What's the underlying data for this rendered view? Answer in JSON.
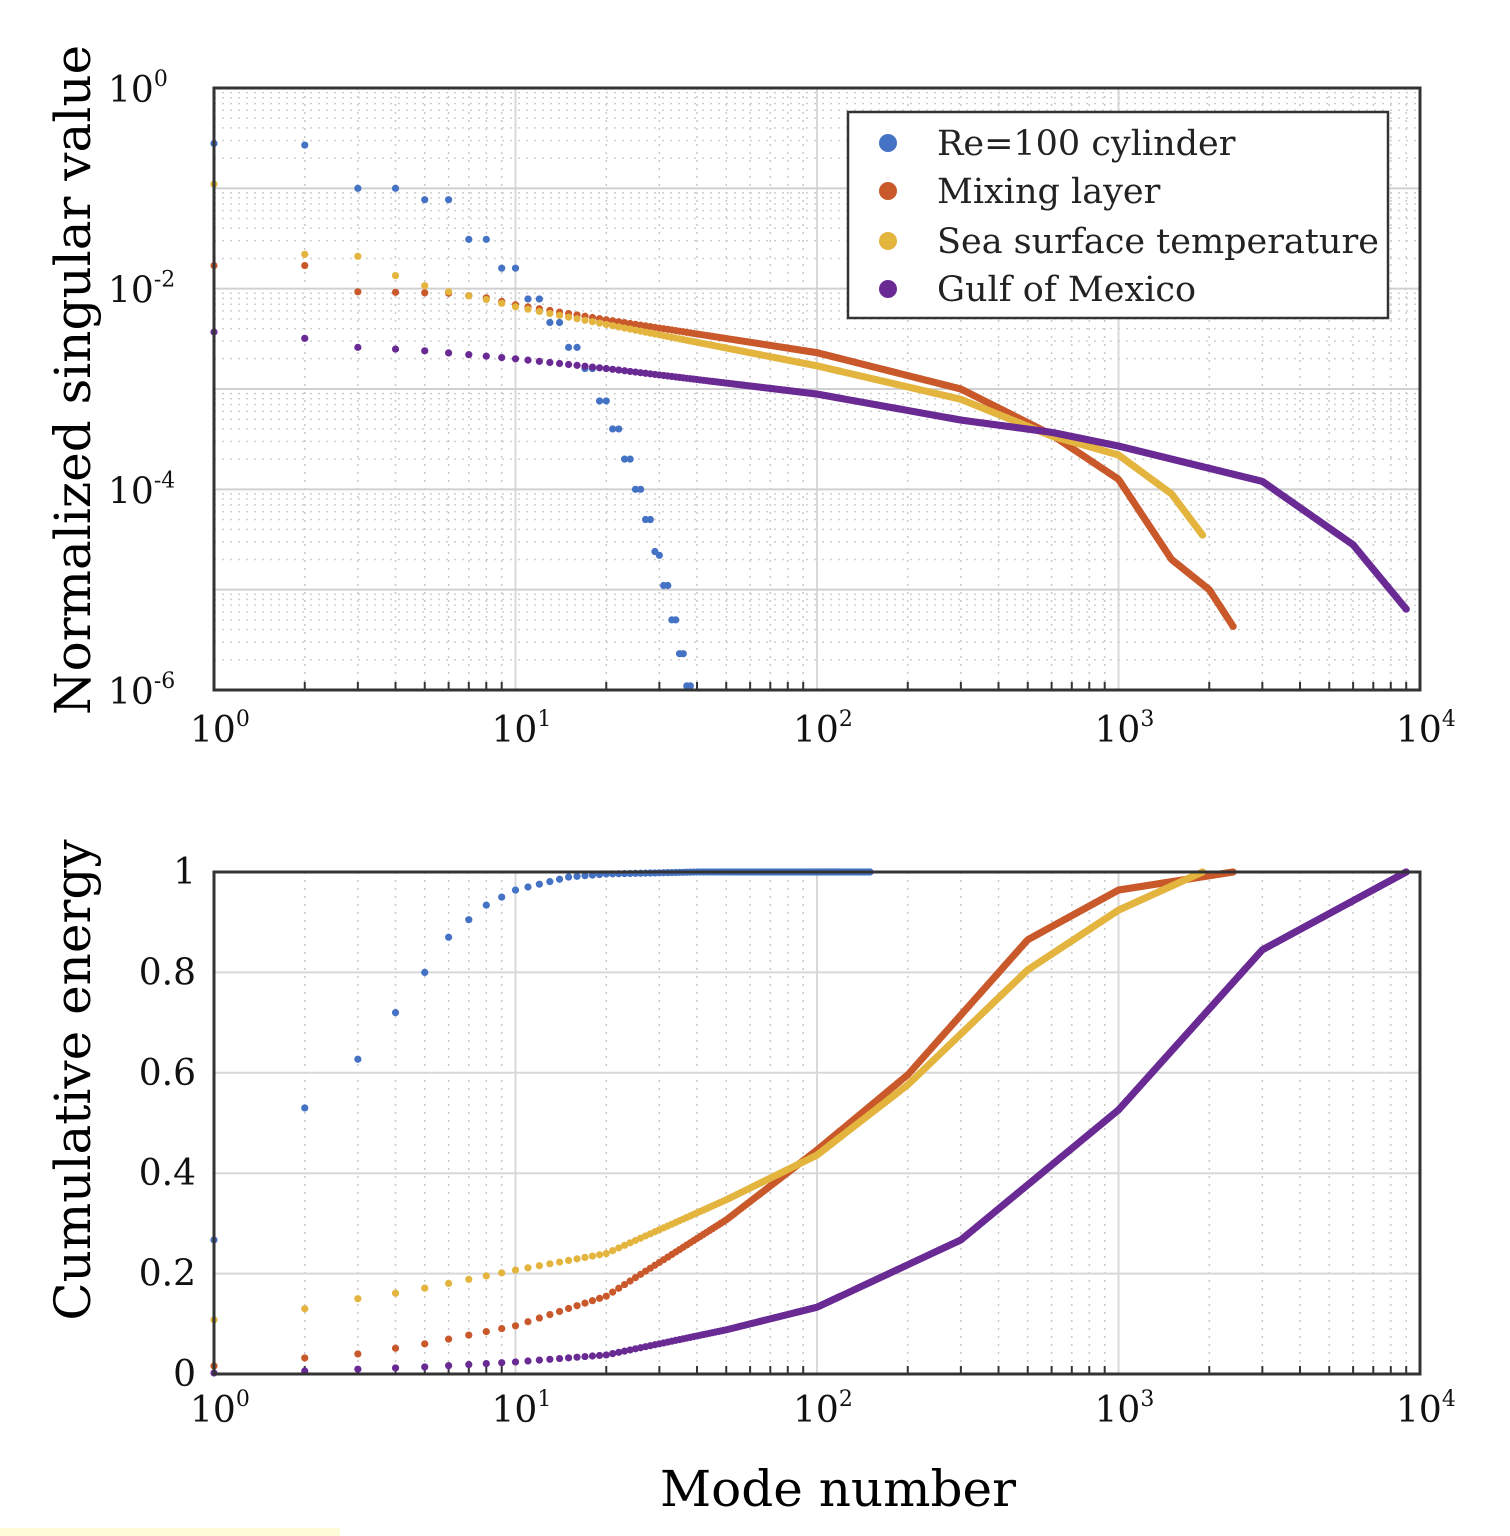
{
  "chart_data": [
    {
      "type": "scatter",
      "ylabel": "Normalized singular value",
      "xlabel": "",
      "xscale": "log",
      "yscale": "log",
      "xlim": [
        1,
        10000
      ],
      "ylim": [
        1e-06,
        1
      ],
      "xticks": [
        {
          "base": "10",
          "exp": "0"
        },
        {
          "base": "10",
          "exp": "1"
        },
        {
          "base": "10",
          "exp": "2"
        },
        {
          "base": "10",
          "exp": "3"
        },
        {
          "base": "10",
          "exp": "4"
        }
      ],
      "yticks": [
        {
          "base": "10",
          "exp": "0"
        },
        {
          "base": "10",
          "exp": "-2"
        },
        {
          "base": "10",
          "exp": "-4"
        },
        {
          "base": "10",
          "exp": "-6"
        }
      ],
      "grid": true,
      "legend_position": "top-right",
      "series": [
        {
          "name": "Re=100 cylinder",
          "color": "#4472c4",
          "points": [
            [
              1,
              0.28
            ],
            [
              2,
              0.27
            ],
            [
              3,
              0.1
            ],
            [
              4,
              0.1
            ],
            [
              5,
              0.077
            ],
            [
              6,
              0.077
            ],
            [
              7,
              0.031
            ],
            [
              8,
              0.031
            ],
            [
              9,
              0.016
            ],
            [
              10,
              0.016
            ],
            [
              11,
              0.0079
            ],
            [
              12,
              0.0079
            ],
            [
              13,
              0.0046
            ],
            [
              14,
              0.0046
            ],
            [
              15,
              0.0026
            ],
            [
              16,
              0.0026
            ],
            [
              17,
              0.0016
            ],
            [
              18,
              0.0016
            ],
            [
              19,
              0.00076
            ],
            [
              20,
              0.00076
            ],
            [
              21,
              0.0004
            ],
            [
              22,
              0.0004
            ],
            [
              23,
              0.0002
            ],
            [
              24,
              0.0002
            ],
            [
              25,
              0.0001
            ],
            [
              26,
              0.0001
            ],
            [
              27,
              5e-05
            ],
            [
              28,
              5e-05
            ],
            [
              29,
              2.4e-05
            ],
            [
              30,
              2.2e-05
            ],
            [
              31,
              1.1e-05
            ],
            [
              32,
              1.1e-05
            ],
            [
              33,
              5e-06
            ],
            [
              34,
              5e-06
            ],
            [
              35,
              2.3e-06
            ],
            [
              36,
              2.3e-06
            ],
            [
              37,
              1.1e-06
            ],
            [
              38,
              1.1e-06
            ]
          ]
        },
        {
          "name": "Mixing layer",
          "color": "#c9582a",
          "points": [
            [
              1,
              0.017
            ],
            [
              2,
              0.017
            ],
            [
              3,
              0.0093
            ],
            [
              4,
              0.0092
            ],
            [
              5,
              0.0091
            ],
            [
              6,
              0.009
            ],
            [
              8,
              0.0081
            ],
            [
              10,
              0.0069
            ],
            [
              20,
              0.0049
            ],
            [
              100,
              0.0023
            ],
            [
              300,
              0.001
            ],
            [
              600,
              0.00035
            ],
            [
              1000,
              0.000126
            ],
            [
              1500,
              2e-05
            ],
            [
              2000,
              1e-05
            ],
            [
              2400,
              4.3e-06
            ]
          ]
        },
        {
          "name": "Sea surface temperature",
          "color": "#e3b53f",
          "points": [
            [
              1,
              0.11
            ],
            [
              2,
              0.022
            ],
            [
              3,
              0.021
            ],
            [
              4,
              0.0135
            ],
            [
              5,
              0.0107
            ],
            [
              6,
              0.0093
            ],
            [
              8,
              0.0078
            ],
            [
              10,
              0.0066
            ],
            [
              20,
              0.0044
            ],
            [
              100,
              0.0017
            ],
            [
              300,
              0.00079
            ],
            [
              600,
              0.00034
            ],
            [
              1000,
              0.00022
            ],
            [
              1500,
              9e-05
            ],
            [
              1900,
              3.5e-05
            ]
          ]
        },
        {
          "name": "Gulf of Mexico",
          "color": "#6a2a94",
          "points": [
            [
              1,
              0.0037
            ],
            [
              2,
              0.0032
            ],
            [
              3,
              0.0026
            ],
            [
              4,
              0.0025
            ],
            [
              5,
              0.0024
            ],
            [
              7,
              0.0022
            ],
            [
              10,
              0.002
            ],
            [
              20,
              0.0016
            ],
            [
              100,
              0.00089
            ],
            [
              300,
              0.00049
            ],
            [
              600,
              0.00037
            ],
            [
              1000,
              0.00027
            ],
            [
              3000,
              0.00012
            ],
            [
              6000,
              2.8e-05
            ],
            [
              9000,
              6.4e-06
            ]
          ]
        }
      ]
    },
    {
      "type": "scatter",
      "ylabel": "Cumulative energy",
      "xlabel": "Mode number",
      "xscale": "log",
      "xlim": [
        1,
        10000
      ],
      "ylim": [
        0,
        1
      ],
      "xticks": [
        {
          "base": "10",
          "exp": "0"
        },
        {
          "base": "10",
          "exp": "1"
        },
        {
          "base": "10",
          "exp": "2"
        },
        {
          "base": "10",
          "exp": "3"
        },
        {
          "base": "10",
          "exp": "4"
        }
      ],
      "yticks": [
        "0",
        "0.2",
        "0.4",
        "0.6",
        "0.8",
        "1"
      ],
      "grid": true,
      "series": [
        {
          "name": "Re=100 cylinder",
          "color": "#4472c4",
          "points": [
            [
              1,
              0.267
            ],
            [
              2,
              0.53
            ],
            [
              3,
              0.627
            ],
            [
              4,
              0.72
            ],
            [
              5,
              0.8
            ],
            [
              6,
              0.87
            ],
            [
              7,
              0.905
            ],
            [
              8,
              0.934
            ],
            [
              9,
              0.95
            ],
            [
              10,
              0.964
            ],
            [
              15,
              0.99
            ],
            [
              20,
              0.996
            ],
            [
              40,
              1
            ],
            [
              150,
              1
            ]
          ]
        },
        {
          "name": "Mixing layer",
          "color": "#c9582a",
          "points": [
            [
              1,
              0.016
            ],
            [
              2,
              0.032
            ],
            [
              3,
              0.04
            ],
            [
              5,
              0.06
            ],
            [
              10,
              0.096
            ],
            [
              20,
              0.155
            ],
            [
              50,
              0.307
            ],
            [
              100,
              0.446
            ],
            [
              200,
              0.596
            ],
            [
              500,
              0.865
            ],
            [
              1000,
              0.964
            ],
            [
              2400,
              1
            ]
          ]
        },
        {
          "name": "Sea surface temperature",
          "color": "#e3b53f",
          "points": [
            [
              1,
              0.108
            ],
            [
              2,
              0.13
            ],
            [
              3,
              0.15
            ],
            [
              4,
              0.161
            ],
            [
              5,
              0.171
            ],
            [
              10,
              0.207
            ],
            [
              20,
              0.24
            ],
            [
              50,
              0.347
            ],
            [
              100,
              0.436
            ],
            [
              200,
              0.576
            ],
            [
              500,
              0.805
            ],
            [
              1000,
              0.924
            ],
            [
              1900,
              1
            ]
          ]
        },
        {
          "name": "Gulf of Mexico",
          "color": "#6a2a94",
          "points": [
            [
              1,
              0.002
            ],
            [
              2,
              0.006
            ],
            [
              5,
              0.014
            ],
            [
              10,
              0.024
            ],
            [
              20,
              0.038
            ],
            [
              50,
              0.088
            ],
            [
              100,
              0.133
            ],
            [
              300,
              0.267
            ],
            [
              1000,
              0.526
            ],
            [
              3000,
              0.845
            ],
            [
              9000,
              1
            ]
          ]
        }
      ]
    }
  ]
}
